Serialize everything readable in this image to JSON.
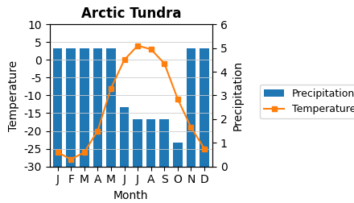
{
  "chart_data": {
    "type": "bar",
    "title": "Arctic Tundra",
    "x_label": "Month",
    "y_label": "Temperature",
    "y2_label": "Precipitation",
    "categories": [
      "J",
      "F",
      "M",
      "A",
      "M",
      "J",
      "J",
      "A",
      "S",
      "O",
      "N",
      "D"
    ],
    "series": [
      {
        "name": "Precipitation",
        "type": "bar",
        "axis": "y2",
        "values": [
          5,
          5,
          5,
          5,
          5,
          2.5,
          2,
          2,
          2,
          1.0,
          5,
          5
        ]
      },
      {
        "name": "Temperature",
        "type": "line",
        "marker": "square",
        "values": [
          -26,
          -28,
          -26,
          -20,
          -8,
          0,
          4,
          3,
          -1,
          -11,
          -19,
          -25
        ]
      }
    ],
    "ylim": [
      -30,
      10
    ],
    "yticks": [
      -30,
      -25,
      -20,
      -15,
      -10,
      -5,
      0,
      5,
      10
    ],
    "y2lim": [
      0,
      6
    ],
    "y2ticks": [
      0,
      1,
      2,
      3,
      4,
      5,
      6
    ],
    "grid": true,
    "legend": "center left"
  }
}
